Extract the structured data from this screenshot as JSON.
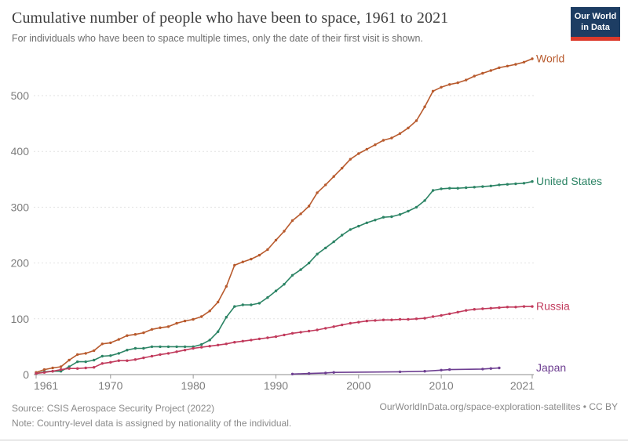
{
  "header": {
    "title": "Cumulative number of people who have been to space, 1961 to 2021",
    "subtitle": "For individuals who have been to space multiple times, only the date of their first visit is shown.",
    "logo": {
      "line1": "Our World",
      "line2": "in Data",
      "bg_color": "#1d3d63",
      "stripe_color": "#dc3a2b"
    }
  },
  "footer": {
    "source": "Source: CSIS Aerospace Security Project (2022)",
    "note": "Note: Country-level data is assigned by nationality of the individual.",
    "link": "OurWorldInData.org/space-exploration-satellites • CC BY"
  },
  "chart_data": {
    "type": "line",
    "title": "Cumulative number of people who have been to space, 1961 to 2021",
    "xlabel": "",
    "ylabel": "",
    "x": [
      1961,
      1962,
      1963,
      1964,
      1965,
      1966,
      1967,
      1968,
      1969,
      1970,
      1971,
      1972,
      1973,
      1974,
      1975,
      1976,
      1977,
      1978,
      1979,
      1980,
      1981,
      1982,
      1983,
      1984,
      1985,
      1986,
      1987,
      1988,
      1989,
      1990,
      1991,
      1992,
      1993,
      1994,
      1995,
      1996,
      1997,
      1998,
      1999,
      2000,
      2001,
      2002,
      2003,
      2004,
      2005,
      2006,
      2007,
      2008,
      2009,
      2010,
      2011,
      2012,
      2013,
      2014,
      2015,
      2016,
      2017,
      2018,
      2019,
      2020,
      2021
    ],
    "xticks": [
      1961,
      1970,
      1980,
      1990,
      2000,
      2010,
      2021
    ],
    "yticks": [
      0,
      100,
      200,
      300,
      400,
      500
    ],
    "ylim": [
      0,
      580
    ],
    "grid": "dashed-horizontal",
    "legend": "end-of-line-labels",
    "series": [
      {
        "name": "World",
        "color": "#b85a2d",
        "values": [
          4,
          9,
          12,
          14,
          26,
          36,
          38,
          43,
          55,
          57,
          63,
          70,
          72,
          75,
          81,
          84,
          86,
          92,
          96,
          99,
          104,
          114,
          130,
          158,
          196,
          202,
          207,
          214,
          224,
          241,
          257,
          276,
          288,
          302,
          326,
          340,
          355,
          370,
          386,
          396,
          404,
          412,
          420,
          424,
          432,
          442,
          455,
          480,
          508,
          515,
          520,
          523,
          528,
          535,
          540,
          545,
          550,
          553,
          556,
          560,
          566
        ]
      },
      {
        "name": "United States",
        "color": "#2c8465",
        "values": [
          2,
          5,
          6,
          6,
          14,
          23,
          23,
          26,
          33,
          34,
          38,
          44,
          47,
          47,
          50,
          50,
          50,
          50,
          50,
          50,
          54,
          62,
          77,
          103,
          122,
          125,
          125,
          128,
          138,
          150,
          162,
          178,
          188,
          200,
          216,
          227,
          238,
          250,
          260,
          266,
          272,
          277,
          282,
          283,
          287,
          293,
          300,
          312,
          330,
          333,
          334,
          334,
          335,
          336,
          337,
          338,
          340,
          341,
          342,
          343,
          346
        ]
      },
      {
        "name": "Russia",
        "color": "#c13a5c",
        "values": [
          2,
          4,
          6,
          9,
          11,
          11,
          12,
          13,
          20,
          22,
          25,
          25,
          27,
          30,
          33,
          36,
          38,
          41,
          44,
          47,
          49,
          51,
          53,
          55,
          58,
          60,
          62,
          64,
          66,
          68,
          71,
          74,
          76,
          78,
          80,
          83,
          86,
          89,
          92,
          94,
          96,
          97,
          98,
          98,
          99,
          99,
          100,
          101,
          104,
          106,
          109,
          112,
          115,
          117,
          118,
          119,
          120,
          121,
          121,
          122,
          122
        ]
      },
      {
        "name": "Japan",
        "color": "#6d3e91",
        "values": [
          null,
          null,
          null,
          null,
          null,
          null,
          null,
          null,
          null,
          null,
          null,
          null,
          null,
          null,
          null,
          null,
          null,
          null,
          null,
          null,
          null,
          null,
          null,
          null,
          null,
          null,
          null,
          null,
          null,
          null,
          null,
          1,
          null,
          2,
          null,
          3,
          4,
          null,
          null,
          null,
          null,
          null,
          null,
          null,
          5,
          null,
          null,
          6,
          null,
          8,
          9,
          null,
          null,
          null,
          10,
          11,
          12,
          null,
          null,
          null,
          null
        ]
      }
    ]
  }
}
